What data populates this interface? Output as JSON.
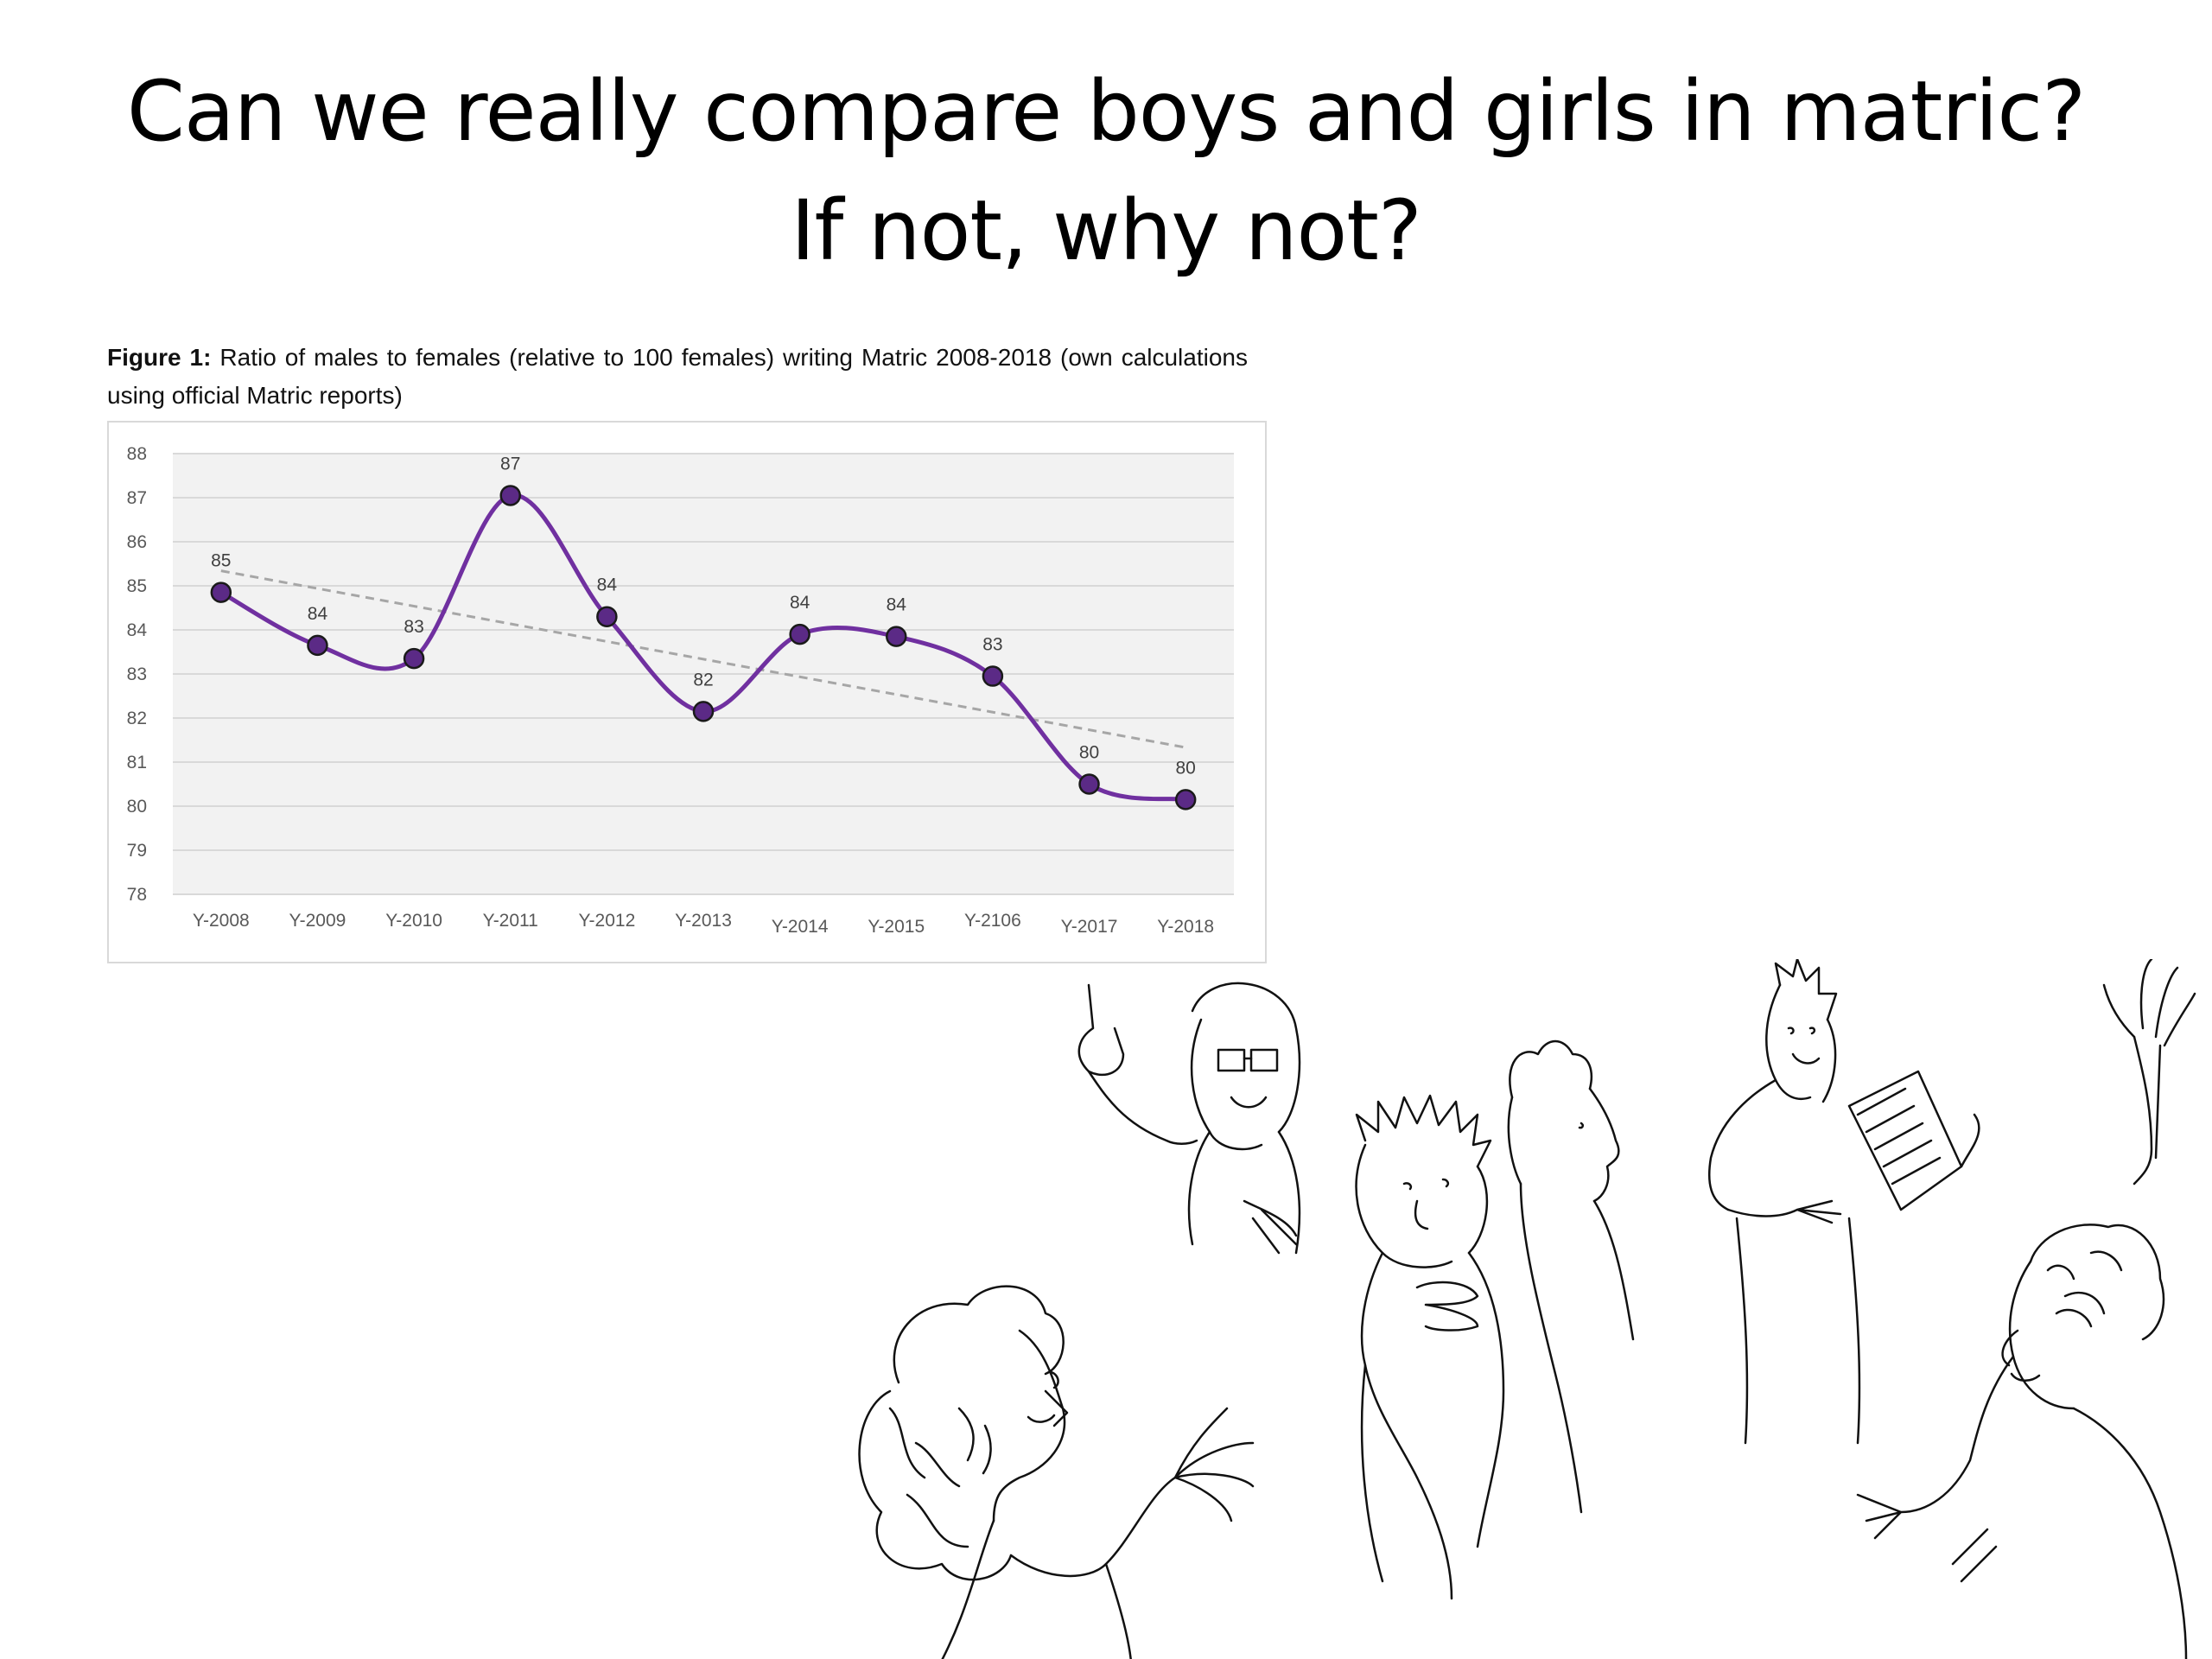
{
  "slide": {
    "title_line1": "Can we really compare boys and girls in matric?",
    "title_line2": "If not, why not?"
  },
  "figure": {
    "label": "Figure 1:",
    "caption": "Ratio of males to females (relative to 100 females) writing Matric 2008-2018 (own calculations using official Matric reports)"
  },
  "chart_data": {
    "type": "line",
    "title": "",
    "xlabel": "",
    "ylabel": "",
    "categories": [
      "Y-2008",
      "Y-2009",
      "Y-2010",
      "Y-2011",
      "Y-2012",
      "Y-2013",
      "Y-2014",
      "Y-2015",
      "Y-2106",
      "Y-2017",
      "Y-2018"
    ],
    "series": [
      {
        "values": [
          84.85,
          83.65,
          83.35,
          87.05,
          84.3,
          82.15,
          83.9,
          83.85,
          82.95,
          80.5,
          80.15
        ],
        "data_labels": [
          "85",
          "84",
          "83",
          "87",
          "84",
          "82",
          "84",
          "84",
          "83",
          "80",
          "80"
        ],
        "color": "#7030a0",
        "marker_color": "#5b2a86",
        "smooth": true
      }
    ],
    "trendline": {
      "type": "linear",
      "style": "dashed",
      "color": "#a6a6a6"
    },
    "ylim": [
      78,
      88
    ],
    "yticks": [
      78,
      79,
      80,
      81,
      82,
      83,
      84,
      85,
      86,
      87,
      88
    ],
    "grid": true,
    "legend": "none",
    "plot_background": "#f2f2f2"
  },
  "illustration": {
    "icon": "people-discussing-sketch-icon"
  }
}
